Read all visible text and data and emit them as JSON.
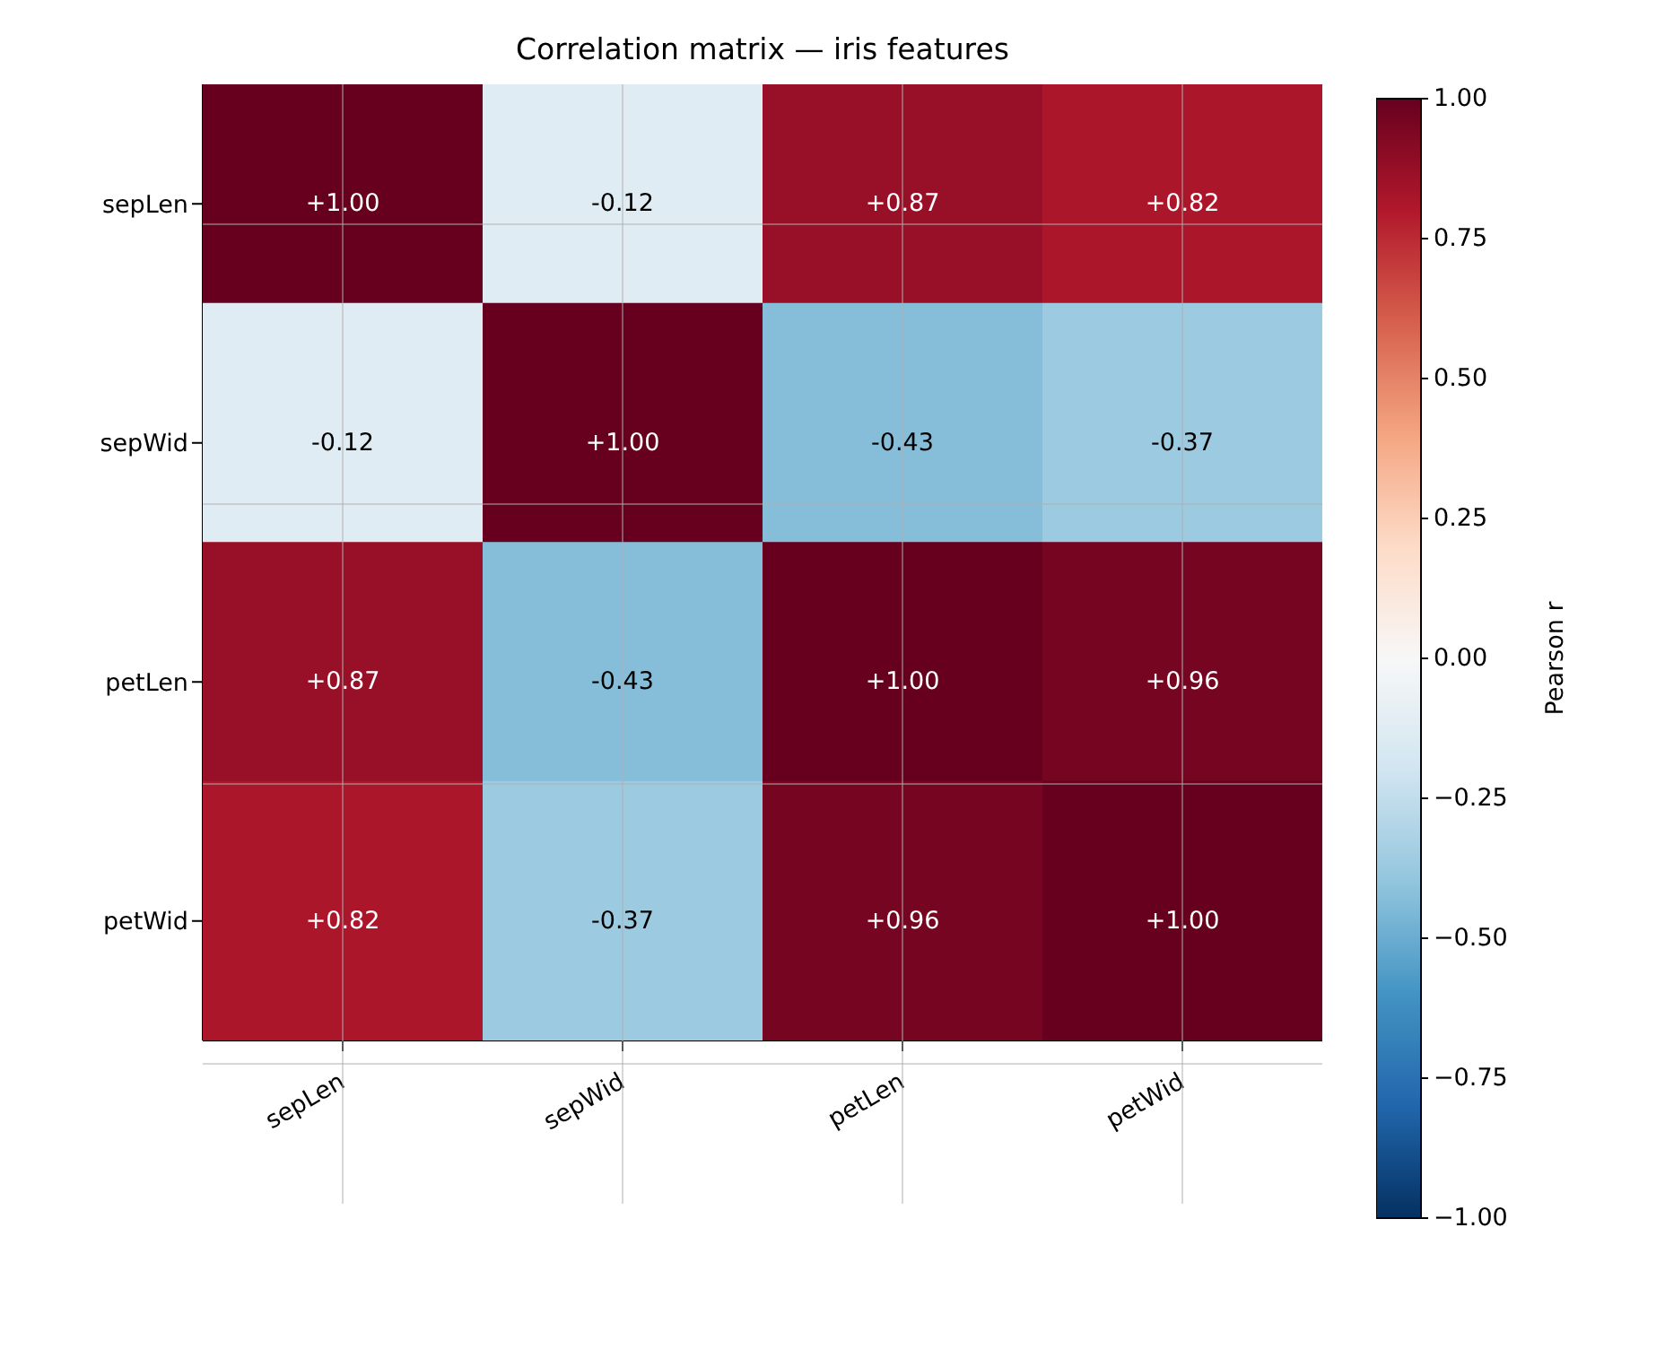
{
  "chart_data": {
    "type": "heatmap",
    "title": "Correlation matrix — iris features",
    "categories": [
      "sepLen",
      "sepWid",
      "petLen",
      "petWid"
    ],
    "y_categories": [
      "sepLen",
      "sepWid",
      "petLen",
      "petWid"
    ],
    "cells": [
      [
        1.0,
        -0.12,
        0.87,
        0.82
      ],
      [
        -0.12,
        1.0,
        -0.43,
        -0.37
      ],
      [
        0.87,
        -0.43,
        1.0,
        0.96
      ],
      [
        0.82,
        -0.37,
        0.96,
        1.0
      ]
    ],
    "cell_labels": [
      [
        "+1.00",
        "-0.12",
        "+0.87",
        "+0.82"
      ],
      [
        "-0.12",
        "+1.00",
        "-0.43",
        "-0.37"
      ],
      [
        "+0.87",
        "-0.43",
        "+1.00",
        "+0.96"
      ],
      [
        "+0.82",
        "-0.37",
        "+0.96",
        "+1.00"
      ]
    ],
    "clabel": "Pearson r",
    "clim": [
      -1,
      1
    ],
    "cticks": [
      {
        "value": -1,
        "label": "−1.00"
      },
      {
        "value": -0.75,
        "label": "−0.75"
      },
      {
        "value": -0.5,
        "label": "−0.50"
      },
      {
        "value": -0.25,
        "label": "−0.25"
      },
      {
        "value": 0,
        "label": "0.00"
      },
      {
        "value": 0.25,
        "label": "0.25"
      },
      {
        "value": 0.5,
        "label": "0.50"
      },
      {
        "value": 0.75,
        "label": "0.75"
      },
      {
        "value": 1,
        "label": "1.00"
      }
    ],
    "grid": true
  }
}
